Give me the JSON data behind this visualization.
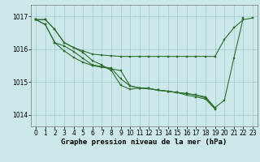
{
  "bg_color": "#cce8ea",
  "line_color": "#2d6e2d",
  "grid_color": "#aacfcf",
  "xlabel": "Graphe pression niveau de la mer (hPa)",
  "xlabel_fontsize": 6.5,
  "tick_fontsize": 5.5,
  "yticks": [
    1014,
    1015,
    1016,
    1017
  ],
  "ylim": [
    1013.65,
    1017.35
  ],
  "xlim": [
    -0.5,
    23.5
  ],
  "xticks": [
    0,
    1,
    2,
    3,
    4,
    5,
    6,
    7,
    8,
    9,
    10,
    11,
    12,
    13,
    14,
    15,
    16,
    17,
    18,
    19,
    20,
    21,
    22,
    23
  ],
  "series": [
    {
      "x": [
        0,
        1,
        2,
        3,
        4,
        5,
        6,
        7,
        8,
        9,
        10,
        11,
        12,
        13,
        14,
        15,
        16,
        17,
        18,
        19,
        20,
        21,
        22,
        23
      ],
      "y": [
        1016.9,
        1016.9,
        1016.6,
        1016.2,
        1016.05,
        1015.95,
        1015.85,
        1015.82,
        1015.8,
        1015.78,
        1015.78,
        1015.78,
        1015.78,
        1015.78,
        1015.78,
        1015.78,
        1015.78,
        1015.78,
        1015.78,
        1015.78,
        1016.3,
        1016.65,
        1016.9,
        1016.95
      ]
    },
    {
      "x": [
        0,
        1,
        2,
        3,
        4,
        5,
        6,
        7,
        8,
        9,
        10,
        11,
        12,
        13,
        14,
        15,
        16,
        17,
        18,
        19,
        20,
        21,
        22
      ],
      "y": [
        1016.9,
        1016.9,
        1016.6,
        1016.2,
        1016.05,
        1015.9,
        1015.65,
        1015.52,
        1015.35,
        1014.9,
        1014.78,
        1014.82,
        1014.8,
        1014.75,
        1014.72,
        1014.68,
        1014.65,
        1014.6,
        1014.55,
        1014.22,
        1014.45,
        1015.72,
        1016.95
      ]
    },
    {
      "x": [
        0,
        1,
        2,
        3,
        4,
        5,
        6,
        7,
        8,
        9,
        10,
        11,
        12,
        13,
        14,
        15,
        16,
        17,
        18,
        19
      ],
      "y": [
        1016.9,
        1016.75,
        1016.2,
        1015.95,
        1015.75,
        1015.6,
        1015.5,
        1015.45,
        1015.4,
        1015.35,
        1014.88,
        1014.82,
        1014.8,
        1014.75,
        1014.72,
        1014.68,
        1014.65,
        1014.6,
        1014.52,
        1014.2
      ]
    },
    {
      "x": [
        0,
        1,
        2,
        3,
        4,
        5,
        6,
        7,
        8,
        9,
        10,
        11,
        12,
        13,
        14,
        15,
        16,
        17,
        18,
        19
      ],
      "y": [
        1016.9,
        1016.75,
        1016.2,
        1016.1,
        1015.93,
        1015.72,
        1015.52,
        1015.47,
        1015.42,
        1015.1,
        1014.88,
        1014.82,
        1014.8,
        1014.75,
        1014.72,
        1014.68,
        1014.6,
        1014.55,
        1014.48,
        1014.18
      ]
    }
  ]
}
